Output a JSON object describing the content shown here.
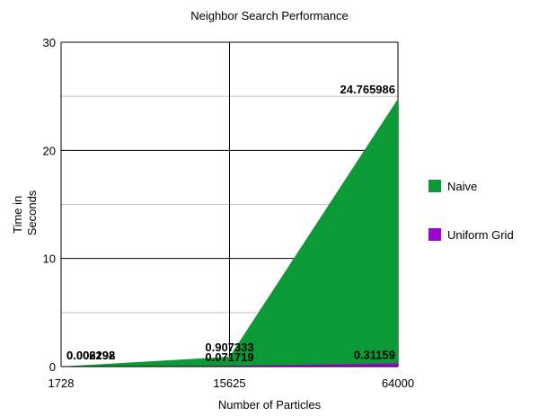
{
  "chart_data": {
    "type": "area",
    "title": "Neighbor Search Performance",
    "xlabel": "Number of Particles",
    "ylabel": "Time in Seconds",
    "ylabel_lines": [
      "Time in",
      "Seconds"
    ],
    "categories": [
      "1728",
      "15625",
      "64000"
    ],
    "ylim": [
      0,
      30
    ],
    "yticks": [
      0,
      10,
      20,
      30
    ],
    "minor_gridlines": [
      5,
      15,
      25
    ],
    "grid": true,
    "legend_position": "right",
    "series": [
      {
        "name": "Naive",
        "color": "#0b9a36",
        "values": [
          0.006298,
          0.907333,
          24.765986
        ],
        "labels": [
          "0.006298",
          "0.907333",
          "24.765986"
        ]
      },
      {
        "name": "Uniform Grid",
        "color": "#9b04d1",
        "values": [
          0.002192,
          0.071719,
          0.31159
        ],
        "labels": [
          "0.002192",
          "0.071719",
          "0.31159"
        ]
      }
    ]
  }
}
